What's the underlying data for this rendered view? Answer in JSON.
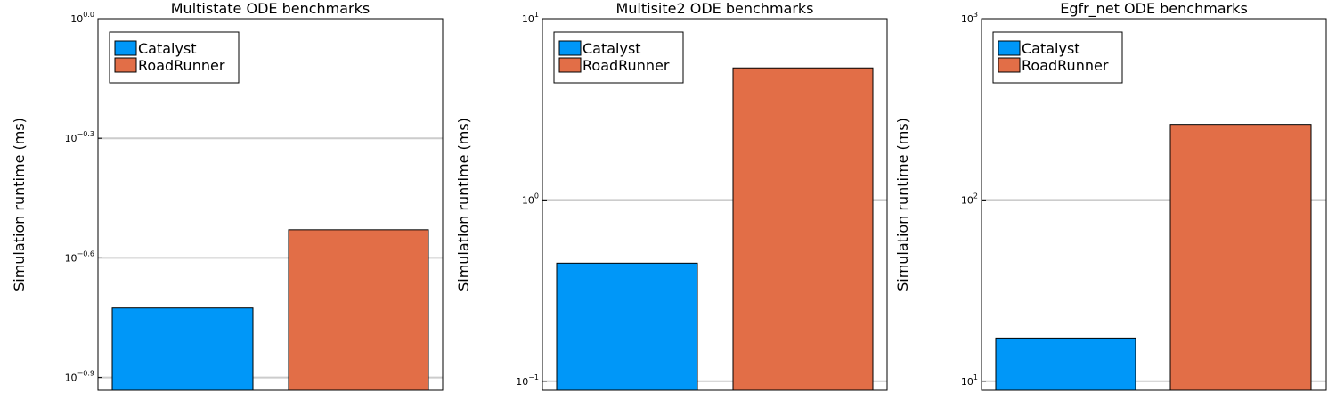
{
  "chart_data": [
    {
      "type": "bar",
      "title": "Multistate ODE benchmarks",
      "ylabel": "Simulation runtime (ms)",
      "xlabel": "",
      "yscale": "log10",
      "ylim": [
        0.1169,
        1.0
      ],
      "yticks": [
        {
          "value": 1.0,
          "base": "10",
          "exp": "0.0"
        },
        {
          "value": 0.5012,
          "base": "10",
          "exp": "−0.3"
        },
        {
          "value": 0.2512,
          "base": "10",
          "exp": "−0.6"
        },
        {
          "value": 0.1259,
          "base": "10",
          "exp": "−0.9"
        }
      ],
      "grid": true,
      "legend_position": "top-left",
      "series": [
        {
          "name": "Catalyst",
          "value": 0.188
        },
        {
          "name": "RoadRunner",
          "value": 0.2955
        }
      ]
    },
    {
      "type": "bar",
      "title": "Multisite2 ODE benchmarks",
      "ylabel": "Simulation runtime (ms)",
      "xlabel": "",
      "yscale": "log10",
      "ylim": [
        0.0891,
        10
      ],
      "yticks": [
        {
          "value": 10,
          "base": "10",
          "exp": "1"
        },
        {
          "value": 1,
          "base": "10",
          "exp": "0"
        },
        {
          "value": 0.1,
          "base": "10",
          "exp": "−1"
        }
      ],
      "grid": true,
      "legend_position": "top-left",
      "series": [
        {
          "name": "Catalyst",
          "value": 0.448
        },
        {
          "name": "RoadRunner",
          "value": 5.35
        }
      ]
    },
    {
      "type": "bar",
      "title": "Egfr_net ODE benchmarks",
      "ylabel": "Simulation runtime (ms)",
      "xlabel": "",
      "yscale": "log10",
      "ylim": [
        8.91,
        1000
      ],
      "yticks": [
        {
          "value": 1000,
          "base": "10",
          "exp": "3"
        },
        {
          "value": 100,
          "base": "10",
          "exp": "2"
        },
        {
          "value": 10,
          "base": "10",
          "exp": "1"
        }
      ],
      "grid": true,
      "legend_position": "top-left",
      "series": [
        {
          "name": "Catalyst",
          "value": 17.3
        },
        {
          "name": "RoadRunner",
          "value": 261
        }
      ]
    }
  ],
  "colors": {
    "catalyst": "#0097f8",
    "roadrunner": "#e26e47",
    "grid": "#cccccc",
    "axis": "#000000",
    "background": "#ffffff"
  }
}
